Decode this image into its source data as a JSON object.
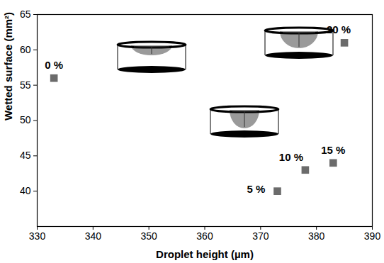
{
  "chart_data": {
    "type": "scatter",
    "x_label": "Droplet height (µm)",
    "y_label": "Wetted surface (mm²)",
    "x": [
      333,
      373,
      378,
      383,
      385
    ],
    "values": [
      56,
      40,
      43,
      44,
      61
    ],
    "labels": [
      "0 %",
      "5 %",
      "10 %",
      "15 %",
      "20 %"
    ],
    "color": "#6b6b6b",
    "marker": "square",
    "xlim": [
      330,
      390
    ],
    "xticks": [
      330,
      340,
      350,
      360,
      370,
      380,
      390
    ],
    "ylim": [
      35,
      65
    ],
    "yticks": [
      40,
      45,
      50,
      55,
      60,
      65
    ],
    "grid": false
  }
}
